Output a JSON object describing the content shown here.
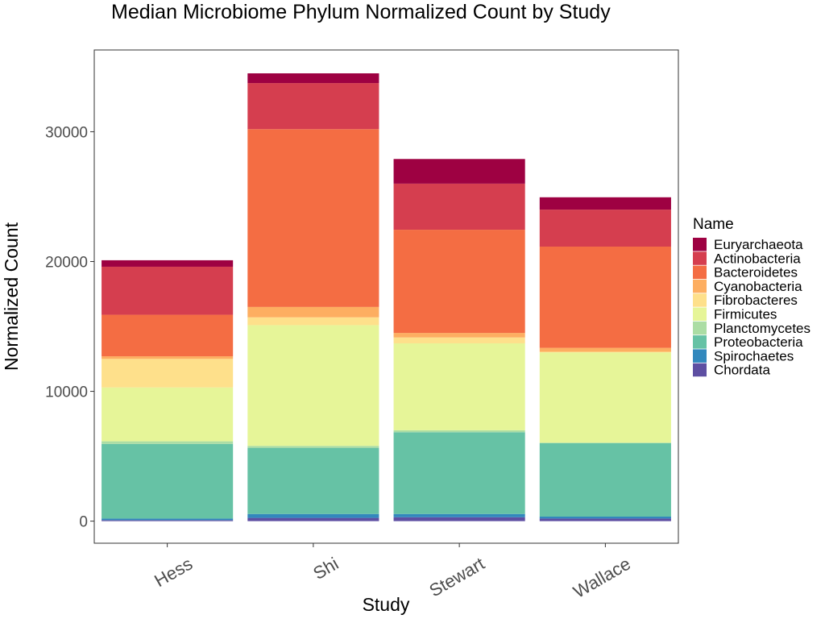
{
  "chart_data": {
    "type": "bar",
    "stacked": true,
    "title": "Median Microbiome Phylum Normalized Count by Study",
    "xlabel": "Study",
    "ylabel": "Normalized Count",
    "categories": [
      "Hess",
      "Shi",
      "Stewart",
      "Wallace"
    ],
    "ylim": [
      -1700,
      36300
    ],
    "yticks": [
      0,
      10000,
      20000,
      30000
    ],
    "grid": false,
    "legend": {
      "title": "Name",
      "position": "right"
    },
    "series": [
      {
        "name": "Chordata",
        "color": "#5E4FA2",
        "values": [
          80,
          250,
          300,
          200
        ]
      },
      {
        "name": "Spirochaetes",
        "color": "#3288BD",
        "values": [
          120,
          300,
          250,
          150
        ]
      },
      {
        "name": "Proteobacteria",
        "color": "#66C2A5",
        "values": [
          5750,
          5100,
          6300,
          5650
        ]
      },
      {
        "name": "Planctomycetes",
        "color": "#ABDDA4",
        "values": [
          200,
          150,
          150,
          50
        ]
      },
      {
        "name": "Firmicutes",
        "color": "#E6F598",
        "values": [
          4150,
          9300,
          6700,
          6950
        ]
      },
      {
        "name": "Fibrobacteres",
        "color": "#FEE08B",
        "values": [
          2200,
          600,
          450,
          50
        ]
      },
      {
        "name": "Cyanobacteria",
        "color": "#FDAE61",
        "values": [
          200,
          800,
          350,
          300
        ]
      },
      {
        "name": "Bacteroidetes",
        "color": "#F46D43",
        "values": [
          3200,
          13700,
          7950,
          7800
        ]
      },
      {
        "name": "Actinobacteria",
        "color": "#D53E4F",
        "values": [
          3700,
          3550,
          3550,
          2850
        ]
      },
      {
        "name": "Euryarchaeota",
        "color": "#9E0142",
        "values": [
          500,
          750,
          1900,
          950
        ]
      }
    ]
  }
}
